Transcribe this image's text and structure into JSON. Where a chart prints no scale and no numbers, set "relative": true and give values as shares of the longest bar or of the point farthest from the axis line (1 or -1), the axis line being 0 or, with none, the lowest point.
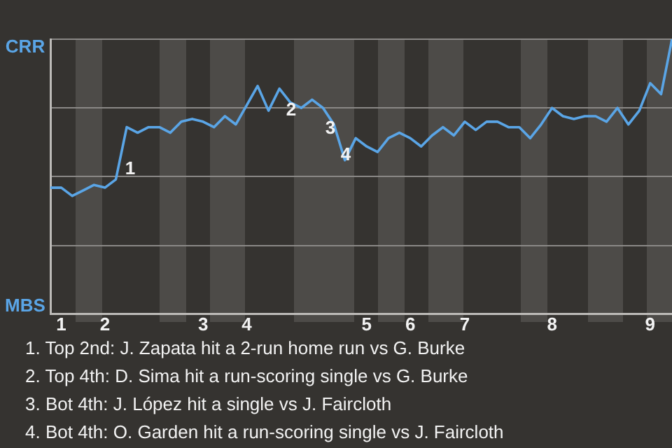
{
  "chart_data": {
    "type": "line",
    "relative": true,
    "categories": [
      null,
      "1",
      null,
      null,
      null,
      "2",
      null,
      null,
      null,
      null,
      null,
      null,
      null,
      null,
      "3",
      null,
      null,
      null,
      "4",
      null,
      null,
      null,
      null,
      null,
      null,
      null,
      null,
      null,
      null,
      "5",
      null,
      null,
      null,
      "6",
      null,
      null,
      null,
      null,
      "7",
      null,
      null,
      null,
      null,
      null,
      null,
      null,
      "8",
      null,
      null,
      null,
      null,
      null,
      null,
      null,
      null,
      "9",
      null,
      null
    ],
    "series": [
      {
        "color": "#5aa5e6",
        "values": [
          0.46,
          0.46,
          0.43,
          0.45,
          0.47,
          0.46,
          0.49,
          0.68,
          0.66,
          0.68,
          0.68,
          0.66,
          0.7,
          0.71,
          0.7,
          0.68,
          0.72,
          0.69,
          0.76,
          0.83,
          0.74,
          0.82,
          0.77,
          0.75,
          0.78,
          0.75,
          0.69,
          0.56,
          0.64,
          0.61,
          0.59,
          0.64,
          0.66,
          0.64,
          0.61,
          0.65,
          0.68,
          0.65,
          0.7,
          0.67,
          0.7,
          0.7,
          0.68,
          0.68,
          0.64,
          0.69,
          0.75,
          0.72,
          0.71,
          0.72,
          0.72,
          0.7,
          0.75,
          0.69,
          0.74,
          0.84,
          0.8,
          1
        ]
      }
    ],
    "grid": "y",
    "marker": "none",
    "line_style": "solid",
    "legend": false,
    "annotations": [
      "CRR",
      "MBS",
      "1",
      "2",
      "3",
      "4",
      "1. Top 2nd: J. Zapata hit a 2-run home run vs G. Burke",
      "2. Top 4th: D. Sima hit a run-scoring single vs G. Burke",
      "3. Bot 4th: J. López hit a single vs J. Faircloth",
      "4. Bot 4th: O. Garden hit a run-scoring single vs J. Faircloth"
    ]
  }
}
